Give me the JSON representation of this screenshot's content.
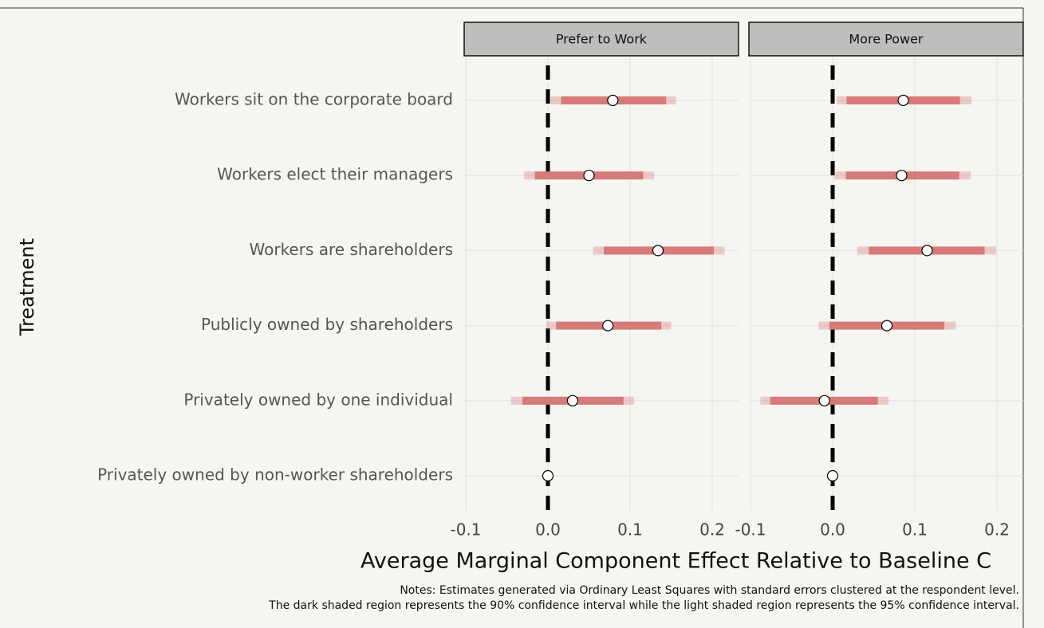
{
  "chart_data": {
    "type": "coefplot",
    "ylabel": "Treatment",
    "xlabel": "Average Marginal Component Effect Relative to Baseline C",
    "notes": [
      "Notes: Estimates generated via Ordinary Least Squares with standard errors clustered at the respondent level.",
      "The dark shaded region represents the 90% confidence interval while the light shaded region represents the 95% confidence interval."
    ],
    "categories": [
      "Workers sit on the corporate board",
      "Workers elect their managers",
      "Workers are shareholders",
      "Publicly owned by shareholders",
      "Privately owned by one individual",
      "Privately owned by non-worker shareholders"
    ],
    "xlim": [
      -0.1,
      0.23
    ],
    "xticks": [
      -0.1,
      {
        "value": 0,
        "label": "0.0"
      },
      0.1,
      0.2
    ],
    "grid": true,
    "color": "#d67a7a",
    "panels": [
      {
        "title": "Prefer to Work",
        "values": [
          0.079,
          0.05,
          0.134,
          0.073,
          0.03,
          0
        ],
        "ci95_low": [
          0.003,
          -0.029,
          0.055,
          -0.002,
          -0.045,
          null
        ],
        "ci95_high": [
          0.156,
          0.129,
          0.215,
          0.15,
          0.105,
          null
        ],
        "ci90_low": [
          0.016,
          -0.016,
          0.068,
          0.01,
          -0.031,
          null
        ],
        "ci90_high": [
          0.144,
          0.116,
          0.202,
          0.138,
          0.092,
          null
        ]
      },
      {
        "title": "More Power",
        "values": [
          0.086,
          0.084,
          0.115,
          0.066,
          -0.01,
          0
        ],
        "ci95_low": [
          0.005,
          0.002,
          0.03,
          -0.017,
          -0.088,
          null
        ],
        "ci95_high": [
          0.169,
          0.168,
          0.199,
          0.15,
          0.068,
          null
        ],
        "ci90_low": [
          0.017,
          0.016,
          0.044,
          -0.004,
          -0.076,
          null
        ],
        "ci90_high": [
          0.155,
          0.154,
          0.185,
          0.136,
          0.055,
          null
        ]
      }
    ]
  }
}
